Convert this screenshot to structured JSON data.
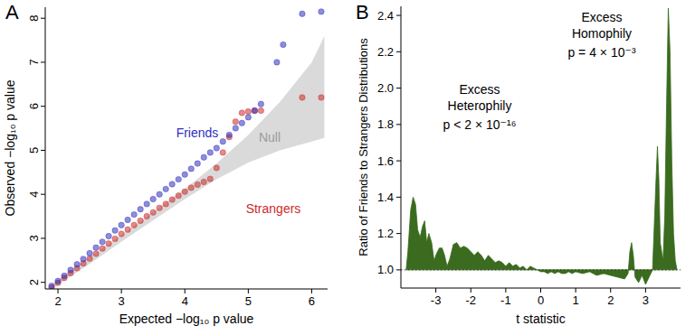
{
  "chart_data": [
    {
      "type": "scatter",
      "title": "A",
      "x_label": "Expected −log₁₀ p value",
      "y_label": "Observed −log₁₀ p value",
      "xlim": [
        1.8,
        6.25
      ],
      "ylim": [
        1.85,
        8.25
      ],
      "xticks": [
        2,
        3,
        4,
        5,
        6
      ],
      "yticks": [
        2,
        3,
        4,
        5,
        6,
        7,
        8
      ],
      "series": [
        {
          "name": "Friends",
          "color": "#2f2fc0",
          "marker": "circle",
          "x": [
            1.9,
            2.0,
            2.1,
            2.2,
            2.3,
            2.4,
            2.5,
            2.6,
            2.7,
            2.8,
            2.9,
            3.0,
            3.1,
            3.2,
            3.3,
            3.4,
            3.5,
            3.6,
            3.7,
            3.8,
            3.9,
            4.0,
            4.1,
            4.2,
            4.3,
            4.4,
            4.5,
            4.6,
            4.7,
            4.8,
            4.9,
            5.0,
            5.1,
            5.2,
            5.45,
            5.55,
            5.85,
            6.15
          ],
          "values": [
            1.92,
            2.03,
            2.15,
            2.28,
            2.41,
            2.53,
            2.66,
            2.79,
            2.92,
            3.05,
            3.18,
            3.3,
            3.42,
            3.54,
            3.66,
            3.78,
            3.89,
            4.0,
            4.12,
            4.23,
            4.34,
            4.45,
            4.58,
            4.7,
            4.84,
            4.95,
            5.05,
            5.2,
            5.35,
            5.5,
            5.62,
            5.75,
            5.9,
            6.05,
            7.0,
            7.4,
            8.1,
            8.15
          ]
        },
        {
          "name": "Strangers",
          "color": "#cc2a2a",
          "marker": "circle",
          "x": [
            1.9,
            2.0,
            2.1,
            2.2,
            2.3,
            2.4,
            2.5,
            2.6,
            2.7,
            2.8,
            2.9,
            3.0,
            3.1,
            3.2,
            3.3,
            3.4,
            3.5,
            3.6,
            3.7,
            3.8,
            3.9,
            4.0,
            4.1,
            4.2,
            4.3,
            4.4,
            4.5,
            4.6,
            4.7,
            4.8,
            4.9,
            5.0,
            5.1,
            5.2,
            5.85,
            6.15
          ],
          "values": [
            1.88,
            1.99,
            2.1,
            2.21,
            2.32,
            2.43,
            2.54,
            2.65,
            2.77,
            2.88,
            2.99,
            3.1,
            3.2,
            3.3,
            3.4,
            3.5,
            3.59,
            3.69,
            3.78,
            3.88,
            3.97,
            4.06,
            4.15,
            4.22,
            4.28,
            4.35,
            4.6,
            4.95,
            5.3,
            5.65,
            5.85,
            5.88,
            5.9,
            5.9,
            6.2,
            6.2
          ]
        },
        {
          "name": "Null",
          "color": "#dadada",
          "type": "band",
          "x": [
            1.9,
            2.5,
            3,
            3.5,
            4,
            4.5,
            5,
            5.5,
            6,
            6.2
          ],
          "lower": [
            1.85,
            2.42,
            2.92,
            3.41,
            3.89,
            4.34,
            4.72,
            5.0,
            5.2,
            5.28
          ],
          "upper": [
            1.95,
            2.58,
            3.08,
            3.6,
            4.12,
            4.7,
            5.35,
            6.1,
            7.0,
            7.6
          ]
        }
      ]
    },
    {
      "type": "area",
      "title": "B",
      "x_label": "t statistic",
      "y_label": "Ratio of Friends to Strangers Distributions",
      "xlim": [
        -4,
        4
      ],
      "ylim": [
        0.9,
        2.45
      ],
      "xticks": [
        -3,
        -2,
        -1,
        0,
        1,
        2,
        3
      ],
      "yticks": [
        {
          "value": 1,
          "label": "1.0"
        },
        1.2,
        1.4,
        1.6,
        1.8,
        {
          "value": 2,
          "label": "2.0"
        },
        2.2,
        2.4
      ],
      "baseline": 1,
      "color": "#3a6b1e",
      "x": [
        -3.85,
        -3.8,
        -3.72,
        -3.65,
        -3.58,
        -3.52,
        -3.45,
        -3.38,
        -3.32,
        -3.26,
        -3.2,
        -3.12,
        -3.05,
        -2.98,
        -2.9,
        -2.82,
        -2.75,
        -2.68,
        -2.6,
        -2.5,
        -2.4,
        -2.3,
        -2.2,
        -2.1,
        -2.0,
        -1.9,
        -1.8,
        -1.7,
        -1.6,
        -1.5,
        -1.4,
        -1.3,
        -1.2,
        -1.1,
        -1.0,
        -0.9,
        -0.8,
        -0.7,
        -0.6,
        -0.5,
        -0.4,
        -0.3,
        -0.2,
        -0.1,
        0,
        0.1,
        0.2,
        0.3,
        0.4,
        0.5,
        0.6,
        0.7,
        0.8,
        0.9,
        1.0,
        1.2,
        1.4,
        1.6,
        1.8,
        2.0,
        2.2,
        2.4,
        2.5,
        2.55,
        2.6,
        2.65,
        2.7,
        2.8,
        2.9,
        3.0,
        3.1,
        3.2,
        3.3,
        3.34,
        3.38,
        3.42,
        3.5,
        3.55,
        3.6,
        3.65,
        3.7,
        3.75,
        3.8,
        3.85,
        3.9
      ],
      "values": [
        1.0,
        1.1,
        1.33,
        1.4,
        1.36,
        1.22,
        1.18,
        1.24,
        1.27,
        1.15,
        1.2,
        1.15,
        1.05,
        1.09,
        1.12,
        1.12,
        1.08,
        1.02,
        1.06,
        1.14,
        1.15,
        1.12,
        1.13,
        1.12,
        1.1,
        1.08,
        1.1,
        1.08,
        1.05,
        1.08,
        1.06,
        1.04,
        1.05,
        1.04,
        1.02,
        1.04,
        1.02,
        1.03,
        1.01,
        1.02,
        1.0,
        1.02,
        1.01,
        1.0,
        0.99,
        0.99,
        0.98,
        0.99,
        0.98,
        0.99,
        0.98,
        0.98,
        0.99,
        0.98,
        0.99,
        0.98,
        0.99,
        0.97,
        0.98,
        0.97,
        0.96,
        0.95,
        0.98,
        1.1,
        1.15,
        1.08,
        0.96,
        0.93,
        0.97,
        0.92,
        0.96,
        1.0,
        1.5,
        1.68,
        1.5,
        1.15,
        1.05,
        1.3,
        1.9,
        2.44,
        2.2,
        1.6,
        1.2,
        1.05,
        1.0
      ],
      "annotations": [
        {
          "text": [
            "Excess",
            "Heterophily",
            "p < 2 × 10⁻¹⁶"
          ]
        },
        {
          "text": [
            "Excess",
            "Homophily",
            "p = 4 × 10⁻³"
          ]
        }
      ]
    }
  ]
}
